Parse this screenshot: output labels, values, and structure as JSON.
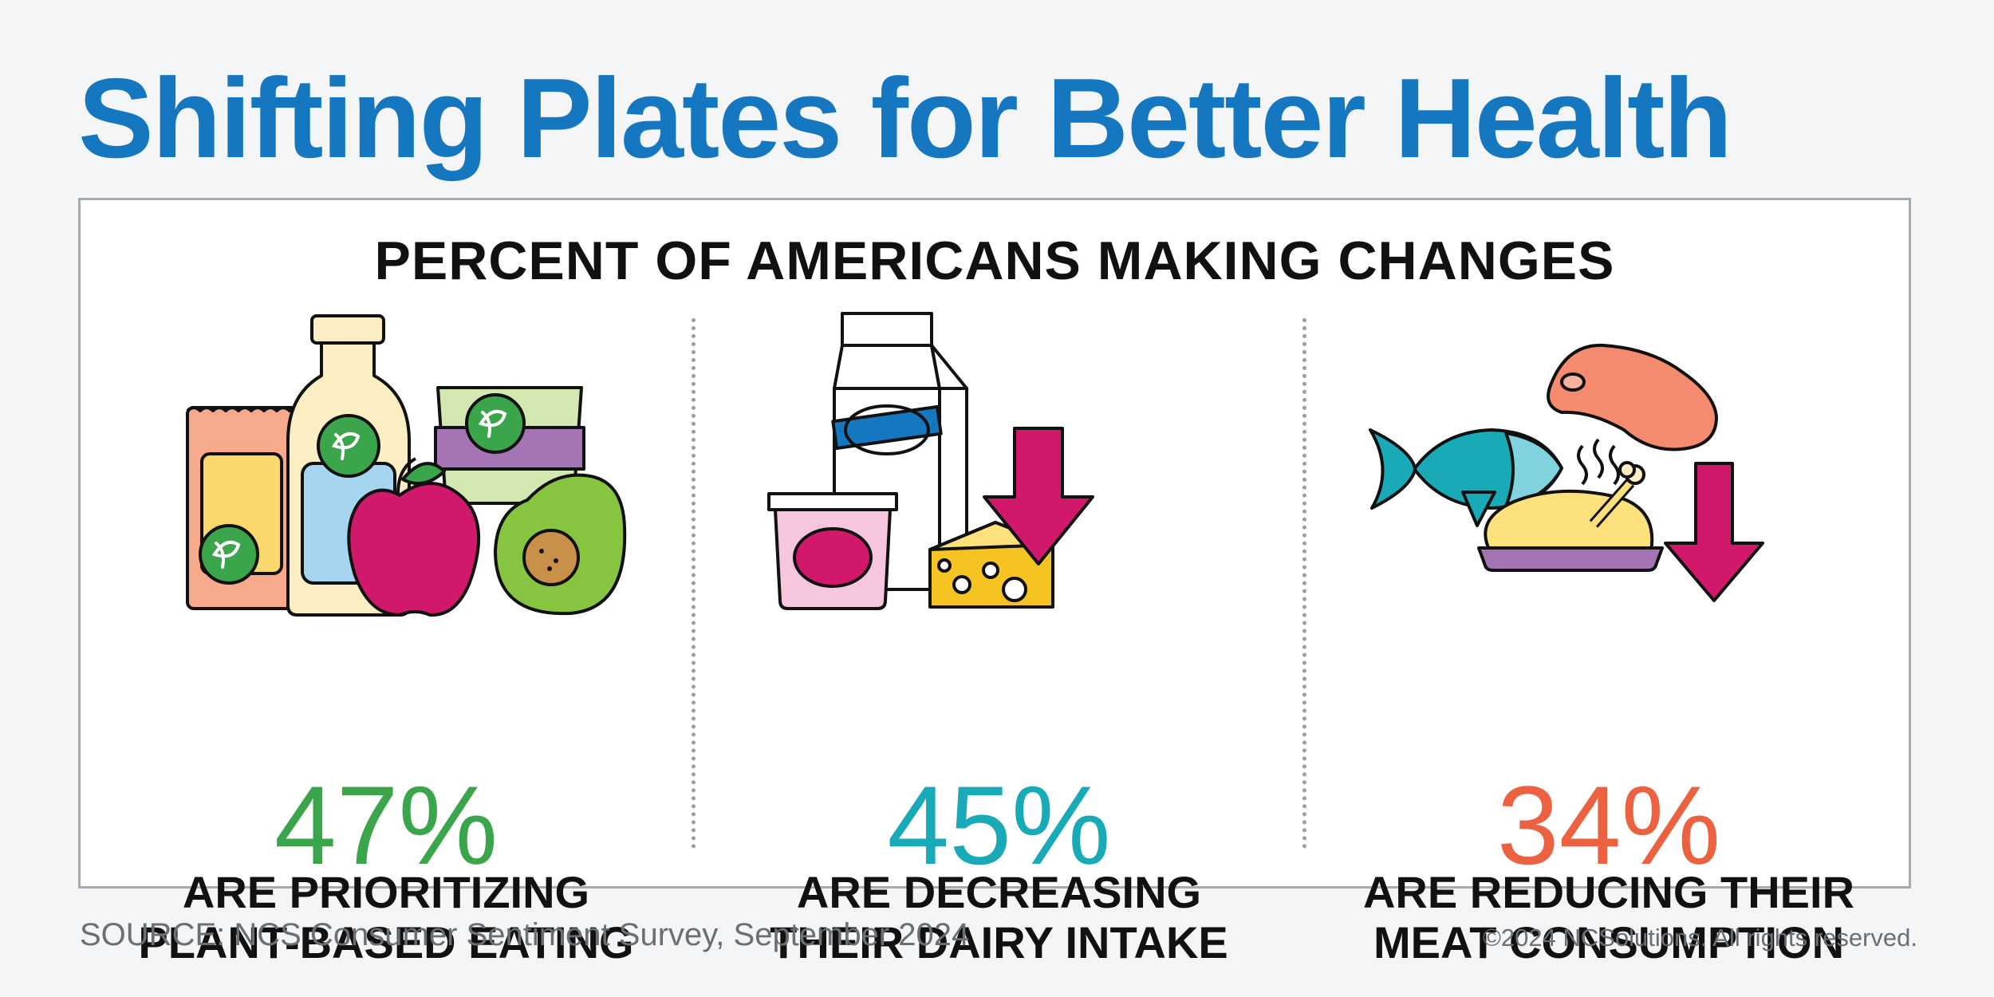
{
  "title": "Shifting Plates for Better Health",
  "subtitle": "PERCENT OF AMERICANS MAKING CHANGES",
  "stats": [
    {
      "value": "47%",
      "line1": "ARE PRIORITIZING",
      "line2": "PLANT-BASED EATING",
      "color": "#3aa54a"
    },
    {
      "value": "45%",
      "line1": "ARE DECREASING",
      "line2": "THEIR DAIRY INTAKE",
      "color": "#19aab7"
    },
    {
      "value": "34%",
      "line1": "ARE REDUCING THEIR",
      "line2": "MEAT CONSUMPTION",
      "color": "#ec6241"
    }
  ],
  "source": "SOURCE: NCS Consumer Sentiment Survey, September 2024",
  "copyright": "©2024 NCSolutions. All rights reserved.",
  "colors": {
    "title": "#1577c0",
    "arrow": "#d2186b"
  }
}
